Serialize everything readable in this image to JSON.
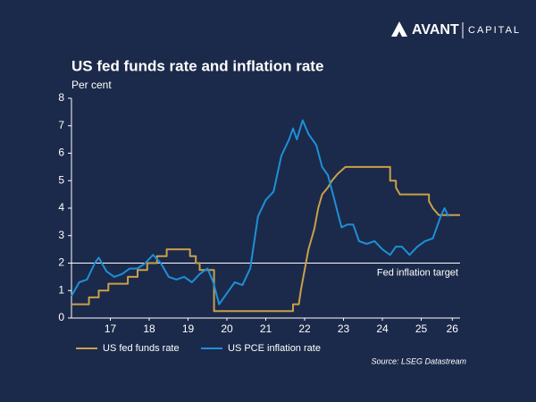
{
  "brand": {
    "name": "AVANT",
    "division": "CAPITAL"
  },
  "chart_data": {
    "type": "line",
    "title": "US fed funds rate and inflation rate",
    "y_label": "Per cent",
    "source": "Source: LSEG Datastream",
    "xlim": [
      2016.5,
      2026.5
    ],
    "xticks": [
      {
        "value": 2017.5,
        "label": "17"
      },
      {
        "value": 2018.5,
        "label": "18"
      },
      {
        "value": 2019.5,
        "label": "19"
      },
      {
        "value": 2020.5,
        "label": "20"
      },
      {
        "value": 2021.5,
        "label": "21"
      },
      {
        "value": 2022.5,
        "label": "22"
      },
      {
        "value": 2023.5,
        "label": "23"
      },
      {
        "value": 2024.5,
        "label": "24"
      },
      {
        "value": 2025.5,
        "label": "25"
      },
      {
        "value": 2026.3,
        "label": "26"
      }
    ],
    "ylim": [
      0,
      8
    ],
    "yticks": [
      0,
      1,
      2,
      3,
      4,
      5,
      6,
      7,
      8
    ],
    "target": 2,
    "target_label": "Fed inflation target",
    "legend": "bottom-left",
    "series": [
      {
        "name": "US fed funds rate",
        "color": "#c9a04a",
        "x": [
          2016.5,
          2016.95,
          2016.95,
          2017.2,
          2017.2,
          2017.45,
          2017.45,
          2017.95,
          2017.95,
          2018.2,
          2018.2,
          2018.45,
          2018.45,
          2018.7,
          2018.7,
          2018.95,
          2018.95,
          2019.55,
          2019.55,
          2019.7,
          2019.7,
          2019.8,
          2019.8,
          2020.17,
          2020.17,
          2022.2,
          2022.2,
          2022.35,
          2022.4,
          2022.5,
          2022.6,
          2022.75,
          2022.85,
          2022.95,
          2023.1,
          2023.2,
          2023.35,
          2023.55,
          2024.7,
          2024.7,
          2024.85,
          2024.85,
          2024.95,
          2025.7,
          2025.7,
          2025.8,
          2025.95,
          2026.5
        ],
        "values": [
          0.5,
          0.5,
          0.75,
          0.75,
          1.0,
          1.0,
          1.25,
          1.25,
          1.5,
          1.5,
          1.75,
          1.75,
          2.0,
          2.0,
          2.25,
          2.25,
          2.5,
          2.5,
          2.25,
          2.25,
          2.0,
          2.0,
          1.75,
          1.75,
          0.25,
          0.25,
          0.5,
          0.5,
          1.0,
          1.75,
          2.5,
          3.25,
          4.0,
          4.5,
          4.75,
          5.0,
          5.25,
          5.5,
          5.5,
          5.0,
          5.0,
          4.75,
          4.5,
          4.5,
          4.25,
          4.0,
          3.75,
          3.75
        ]
      },
      {
        "name": "US PCE inflation rate",
        "color": "#1e8fd8",
        "x": [
          2016.5,
          2016.7,
          2016.9,
          2017.1,
          2017.2,
          2017.4,
          2017.6,
          2017.8,
          2018.0,
          2018.2,
          2018.4,
          2018.6,
          2018.8,
          2019.0,
          2019.2,
          2019.4,
          2019.6,
          2019.8,
          2020.0,
          2020.15,
          2020.3,
          2020.5,
          2020.7,
          2020.9,
          2021.1,
          2021.3,
          2021.5,
          2021.7,
          2021.9,
          2022.1,
          2022.2,
          2022.3,
          2022.45,
          2022.6,
          2022.8,
          2022.95,
          2023.1,
          2023.25,
          2023.45,
          2023.6,
          2023.75,
          2023.9,
          2024.1,
          2024.3,
          2024.5,
          2024.7,
          2024.85,
          2025.0,
          2025.2,
          2025.4,
          2025.6,
          2025.8,
          2026.0,
          2026.1,
          2026.2
        ],
        "values": [
          0.8,
          1.3,
          1.4,
          2.0,
          2.2,
          1.7,
          1.5,
          1.6,
          1.8,
          1.8,
          2.0,
          2.3,
          2.0,
          1.5,
          1.4,
          1.5,
          1.3,
          1.6,
          1.8,
          1.3,
          0.5,
          0.9,
          1.3,
          1.2,
          1.8,
          3.7,
          4.3,
          4.6,
          5.9,
          6.5,
          6.9,
          6.5,
          7.2,
          6.7,
          6.3,
          5.5,
          5.2,
          4.4,
          3.3,
          3.4,
          3.4,
          2.8,
          2.7,
          2.8,
          2.5,
          2.3,
          2.6,
          2.6,
          2.3,
          2.6,
          2.8,
          2.9,
          3.7,
          4.0,
          3.7
        ]
      }
    ]
  }
}
